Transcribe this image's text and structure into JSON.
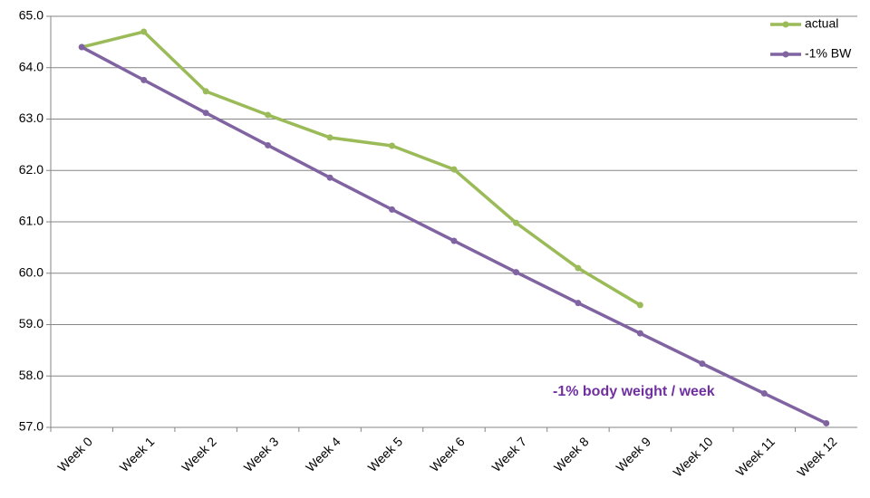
{
  "chart_data": {
    "type": "line",
    "categories": [
      "Week 0",
      "Week 1",
      "Week 2",
      "Week 3",
      "Week 4",
      "Week 5",
      "Week 6",
      "Week 7",
      "Week 8",
      "Week 9",
      "Week 10",
      "Week 11",
      "Week 12"
    ],
    "series": [
      {
        "name": "actual",
        "color": "#9bbb59",
        "values": [
          64.4,
          64.7,
          63.54,
          63.08,
          62.64,
          62.48,
          62.02,
          60.98,
          60.1,
          59.38,
          null,
          null,
          null
        ]
      },
      {
        "name": "-1% BW",
        "color": "#8064a2",
        "values": [
          64.4,
          63.76,
          63.12,
          62.49,
          61.86,
          61.24,
          60.63,
          60.02,
          59.42,
          58.83,
          58.24,
          57.66,
          57.08
        ]
      }
    ],
    "ylim": [
      57,
      65
    ],
    "yticks": [
      {
        "value": 57,
        "label": "57.0"
      },
      {
        "value": 58,
        "label": "58.0"
      },
      {
        "value": 59,
        "label": "59.0"
      },
      {
        "value": 60,
        "label": "60.0"
      },
      {
        "value": 61,
        "label": "61.0"
      },
      {
        "value": 62,
        "label": "62.0"
      },
      {
        "value": 63,
        "label": "63.0"
      },
      {
        "value": 64,
        "label": "64.0"
      },
      {
        "value": 65,
        "label": "65.0"
      }
    ],
    "grid": true,
    "legend": "upper right",
    "annotations": [
      {
        "text": "-1% body weight / week",
        "color": "#7030a0"
      }
    ]
  }
}
